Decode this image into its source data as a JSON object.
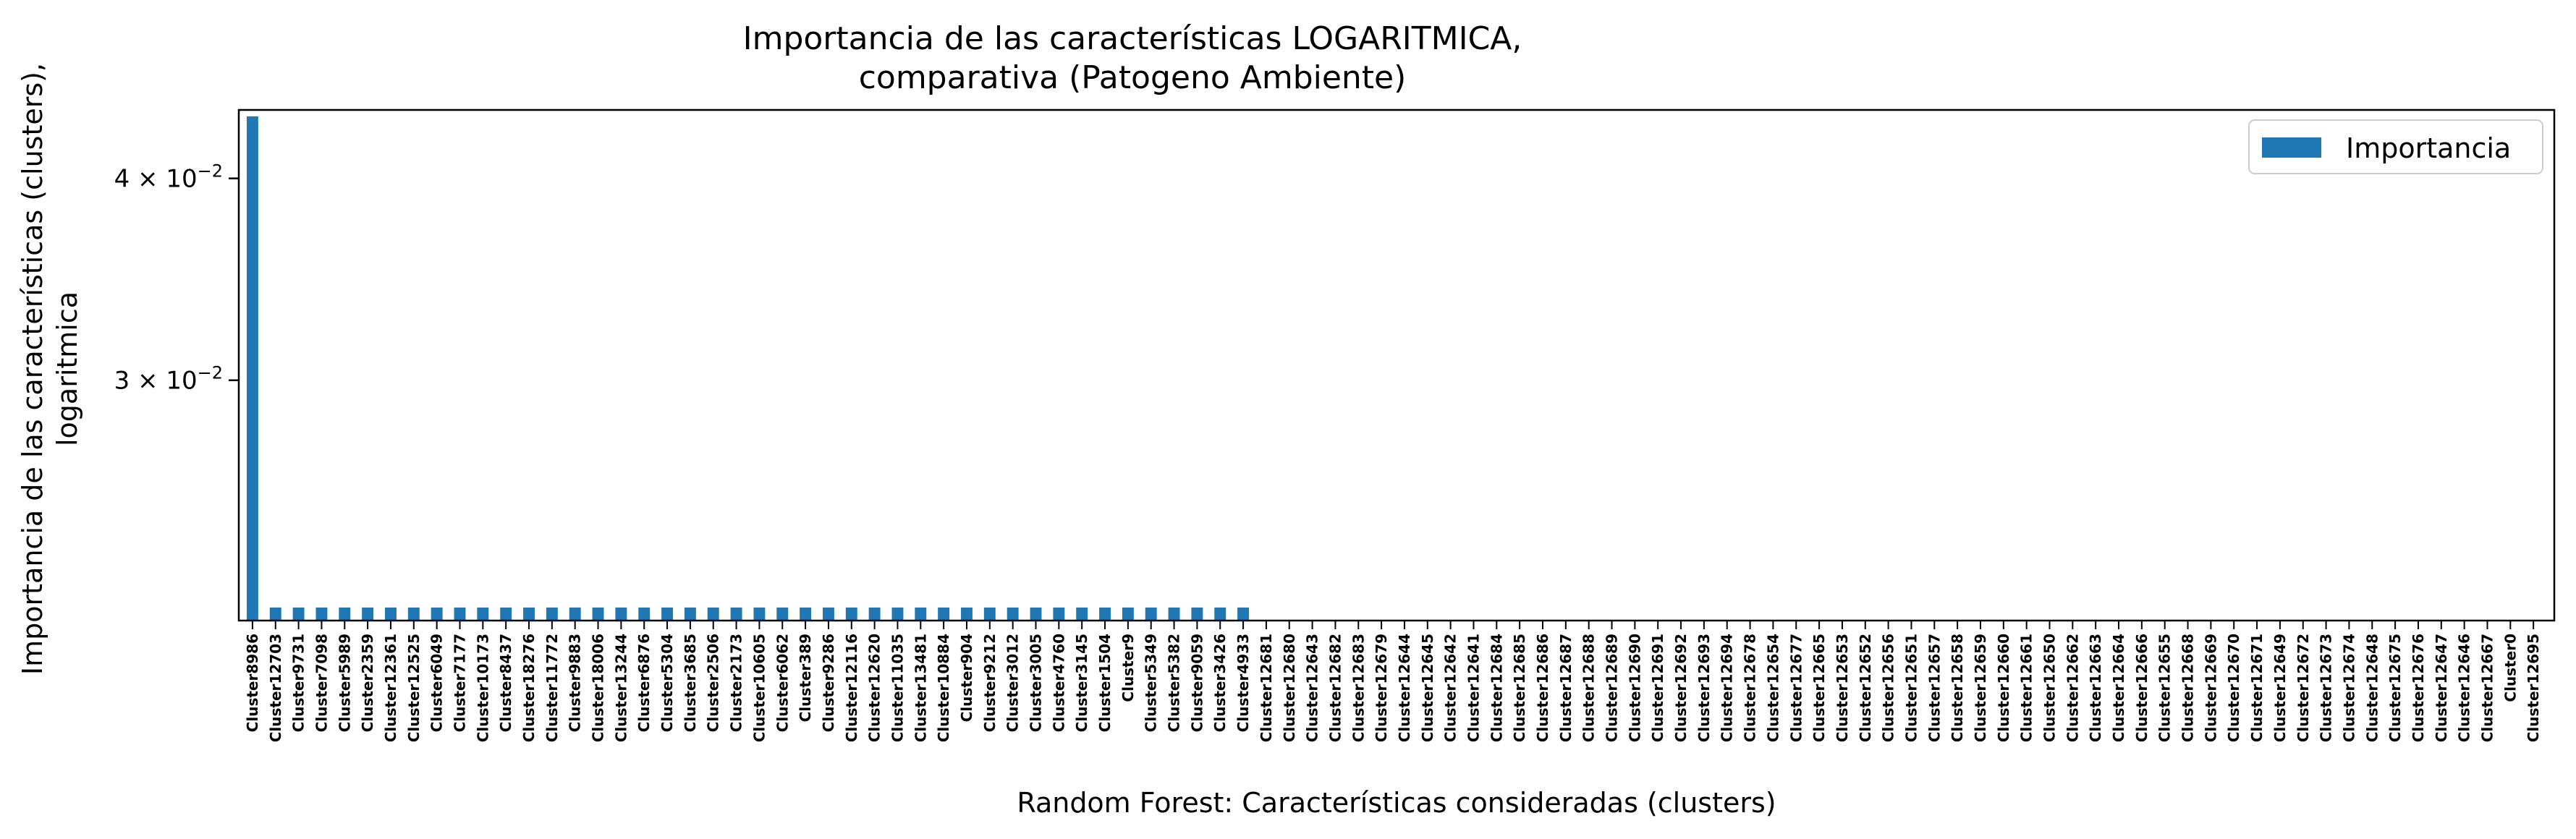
{
  "chart_data": {
    "type": "bar",
    "title_lines": [
      "Importancia de las características LOGARITMICA,",
      "comparativa (Patogeno Ambiente)"
    ],
    "xlabel": "Random Forest: Características consideradas (clusters)",
    "ylabel_lines": [
      "Importancia de las características (clusters),",
      "logaritmica"
    ],
    "yscale": "log",
    "ylim": [
      0.0213,
      0.0441
    ],
    "yticks": [
      {
        "value": 0.04,
        "base": "4",
        "exp": "−2"
      },
      {
        "value": 0.03,
        "base": "3",
        "exp": "−2"
      }
    ],
    "legend": {
      "position": "top-right",
      "entries": [
        "Importancia"
      ]
    },
    "bar_color": "#1f77b4",
    "categories": [
      "Cluster8986",
      "Cluster12703",
      "Cluster9731",
      "Cluster7098",
      "Cluster5989",
      "Cluster2359",
      "Cluster12361",
      "Cluster12525",
      "Cluster6049",
      "Cluster7177",
      "Cluster10173",
      "Cluster8437",
      "Cluster18276",
      "Cluster11772",
      "Cluster9883",
      "Cluster18006",
      "Cluster13244",
      "Cluster6876",
      "Cluster5304",
      "Cluster3685",
      "Cluster2506",
      "Cluster2173",
      "Cluster10605",
      "Cluster6062",
      "Cluster389",
      "Cluster9286",
      "Cluster12116",
      "Cluster12620",
      "Cluster11035",
      "Cluster13481",
      "Cluster10884",
      "Cluster904",
      "Cluster9212",
      "Cluster3012",
      "Cluster3005",
      "Cluster4760",
      "Cluster3145",
      "Cluster1504",
      "Cluster9",
      "Cluster5349",
      "Cluster5382",
      "Cluster9059",
      "Cluster3426",
      "Cluster4933",
      "Cluster12681",
      "Cluster12680",
      "Cluster12643",
      "Cluster12682",
      "Cluster12683",
      "Cluster12679",
      "Cluster12644",
      "Cluster12645",
      "Cluster12642",
      "Cluster12641",
      "Cluster12684",
      "Cluster12685",
      "Cluster12686",
      "Cluster12687",
      "Cluster12688",
      "Cluster12689",
      "Cluster12690",
      "Cluster12691",
      "Cluster12692",
      "Cluster12693",
      "Cluster12694",
      "Cluster12678",
      "Cluster12654",
      "Cluster12677",
      "Cluster12665",
      "Cluster12653",
      "Cluster12652",
      "Cluster12656",
      "Cluster12651",
      "Cluster12657",
      "Cluster12658",
      "Cluster12659",
      "Cluster12660",
      "Cluster12661",
      "Cluster12650",
      "Cluster12662",
      "Cluster12663",
      "Cluster12664",
      "Cluster12666",
      "Cluster12655",
      "Cluster12668",
      "Cluster12669",
      "Cluster12670",
      "Cluster12671",
      "Cluster12649",
      "Cluster12672",
      "Cluster12673",
      "Cluster12674",
      "Cluster12648",
      "Cluster12675",
      "Cluster12676",
      "Cluster12647",
      "Cluster12646",
      "Cluster12667",
      "Cluster0",
      "Cluster12695"
    ],
    "values": [
      0.0437,
      0.0217,
      0.0217,
      0.0217,
      0.0217,
      0.0217,
      0.0217,
      0.0217,
      0.0217,
      0.0217,
      0.0217,
      0.0217,
      0.0217,
      0.0217,
      0.0217,
      0.0217,
      0.0217,
      0.0217,
      0.0217,
      0.0217,
      0.0217,
      0.0217,
      0.0217,
      0.0217,
      0.0217,
      0.0217,
      0.0217,
      0.0217,
      0.0217,
      0.0217,
      0.0217,
      0.0217,
      0.0217,
      0.0217,
      0.0217,
      0.0217,
      0.0217,
      0.0217,
      0.0217,
      0.0217,
      0.0217,
      0.0217,
      0.0217,
      0.0217,
      0,
      0,
      0,
      0,
      0,
      0,
      0,
      0,
      0,
      0,
      0,
      0,
      0,
      0,
      0,
      0,
      0,
      0,
      0,
      0,
      0,
      0,
      0,
      0,
      0,
      0,
      0,
      0,
      0,
      0,
      0,
      0,
      0,
      0,
      0,
      0,
      0,
      0,
      0,
      0,
      0,
      0,
      0,
      0,
      0,
      0,
      0,
      0,
      0,
      0,
      0,
      0,
      0,
      0,
      0,
      0
    ]
  }
}
